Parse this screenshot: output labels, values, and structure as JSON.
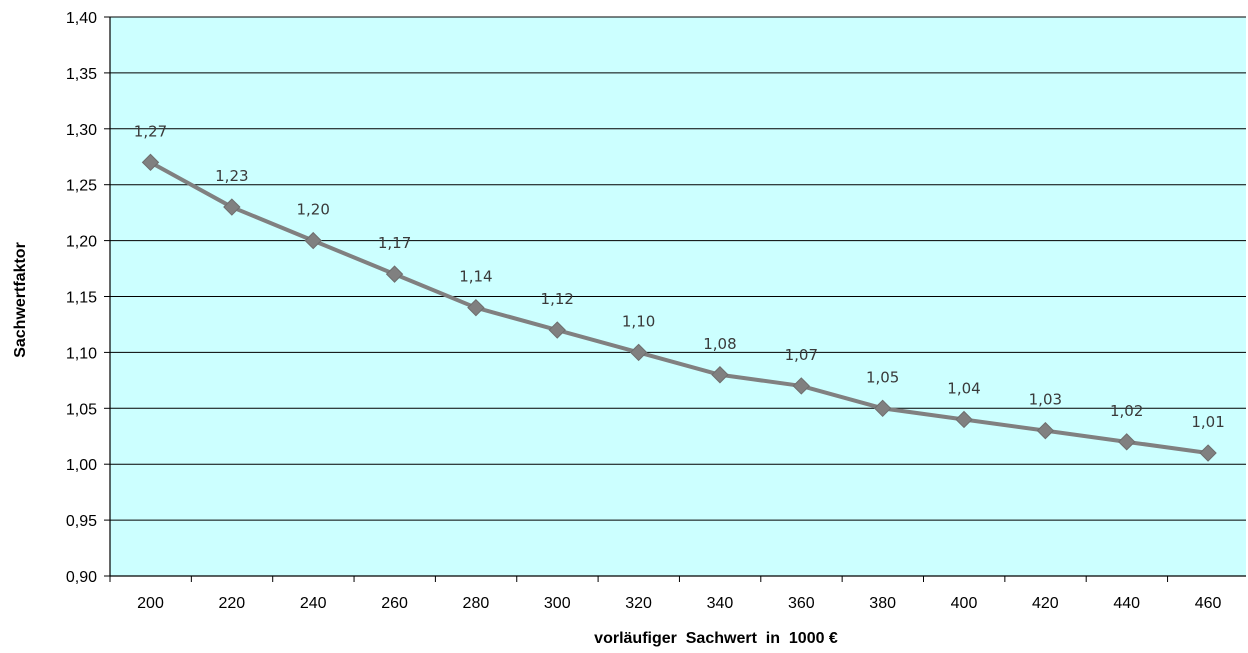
{
  "chart_data": {
    "type": "line",
    "title": "",
    "xlabel": "vorläufiger  Sachwert  in  1000 €",
    "ylabel": "Sachwertfaktor",
    "x": [
      200,
      220,
      240,
      260,
      280,
      300,
      320,
      340,
      360,
      380,
      400,
      420,
      440,
      460
    ],
    "x_tick_labels": [
      "200",
      "220",
      "240",
      "260",
      "280",
      "300",
      "320",
      "340",
      "360",
      "380",
      "400",
      "420",
      "440",
      "460"
    ],
    "series": [
      {
        "values": [
          1.27,
          1.23,
          1.2,
          1.17,
          1.14,
          1.12,
          1.1,
          1.08,
          1.07,
          1.05,
          1.04,
          1.03,
          1.02,
          1.01
        ],
        "data_labels": [
          "1,27",
          "1,23",
          "1,20",
          "1,17",
          "1,14",
          "1,12",
          "1,10",
          "1,08",
          "1,07",
          "1,05",
          "1,04",
          "1,03",
          "1,02",
          "1,01"
        ],
        "color": "#808080",
        "marker": "diamond"
      }
    ],
    "ylim": [
      0.9,
      1.4
    ],
    "y_ticks": [
      0.9,
      0.95,
      1.0,
      1.05,
      1.1,
      1.15,
      1.2,
      1.25,
      1.3,
      1.35,
      1.4
    ],
    "y_tick_labels": [
      "0,90",
      "0,95",
      "1,00",
      "1,05",
      "1,10",
      "1,15",
      "1,20",
      "1,25",
      "1,30",
      "1,35",
      "1,40"
    ],
    "grid": true,
    "legend": "none",
    "plot_background": "#ccffff",
    "gridline_color": "#000000"
  }
}
